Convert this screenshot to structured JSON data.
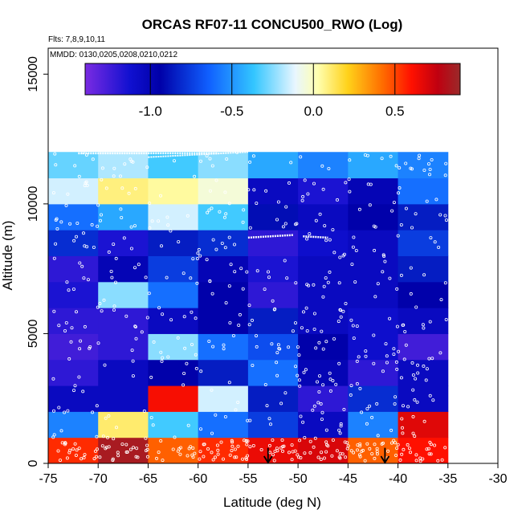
{
  "chart_data": {
    "type": "heatmap",
    "title": "ORCAS RF07-11 CONCU500_RWO (Log)",
    "flights_note": "Flts: 7,8,9,10,11",
    "dates_note": "MMDD: 0130,0205,0208,0210,0212",
    "xlabel": "Latitude (deg N)",
    "ylabel": "Altitude (m)",
    "xlim": [
      -75,
      -30
    ],
    "ylim": [
      0,
      16000
    ],
    "x_ticks": [
      -75,
      -70,
      -65,
      -60,
      -55,
      -50,
      -45,
      -40,
      -35,
      -30
    ],
    "x_tick_labels": [
      "-75",
      "-70",
      "-65",
      "-60",
      "-55",
      "-50",
      "-45",
      "-40",
      "-35",
      "-30"
    ],
    "y_ticks": [
      0,
      5000,
      10000,
      15000
    ],
    "y_tick_labels": [
      "0",
      "5000",
      "10000",
      "15000"
    ],
    "colorbar": {
      "range": [
        -1.4,
        0.9
      ],
      "ticks": [
        -1.0,
        -0.5,
        0.0,
        0.5
      ],
      "tick_labels": [
        "-1.0",
        "-0.5",
        "0.0",
        "0.5"
      ]
    },
    "grid": {
      "x_bins": [
        -75,
        -70,
        -65,
        -60,
        -55,
        -50,
        -45,
        -40,
        -35
      ],
      "altitude_bins": [
        0,
        1000,
        2000,
        3000,
        4000,
        5000,
        6000,
        7000,
        8000,
        9000,
        10000,
        11000,
        12000
      ],
      "values_bottom_to_top": [
        [
          0.55,
          0.85,
          0.45,
          0.55,
          0.65,
          0.7,
          0.45,
          0.6
        ],
        [
          -0.55,
          0.1,
          -0.35,
          -0.6,
          -0.75,
          -1.05,
          -0.55,
          0.68
        ],
        [
          -1.05,
          -1.05,
          0.62,
          -0.15,
          -0.85,
          -1.2,
          -0.8,
          -1.05
        ],
        [
          -1.2,
          -1.05,
          -0.95,
          -0.85,
          -0.6,
          -1.0,
          -1.2,
          -1.05
        ],
        [
          -1.25,
          -1.2,
          -0.25,
          -0.6,
          -0.7,
          -0.95,
          -1.1,
          -1.25
        ],
        [
          -1.2,
          -1.2,
          -1.05,
          -0.95,
          -0.85,
          -1.05,
          -1.1,
          -1.05
        ],
        [
          -1.15,
          -0.25,
          -0.6,
          -0.95,
          -1.2,
          -1.05,
          -1.05,
          -0.95
        ],
        [
          -1.2,
          -1.0,
          -0.75,
          -1.0,
          -1.15,
          -1.05,
          -1.05,
          -0.85
        ],
        [
          -0.8,
          -1.15,
          -0.85,
          -0.8,
          -1.2,
          -1.1,
          -1.05,
          -0.75
        ],
        [
          -0.6,
          -0.45,
          -0.15,
          -0.35,
          -0.9,
          -1.05,
          -0.95,
          -0.85
        ],
        [
          -0.15,
          0.08,
          0.04,
          -0.05,
          -1.05,
          -1.15,
          -1.0,
          -0.6
        ],
        [
          -0.3,
          -0.2,
          -0.35,
          -0.25,
          -0.45,
          -0.55,
          -0.45,
          -0.55
        ]
      ]
    },
    "markers": {
      "type": "down-arrow",
      "latitudes": [
        -53,
        -41.3
      ]
    }
  }
}
